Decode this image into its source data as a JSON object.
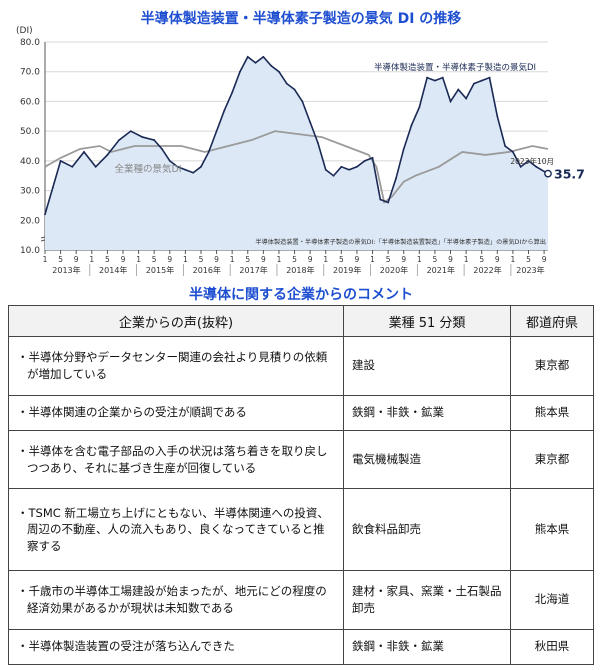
{
  "chart_data": {
    "type": "area",
    "title": "半導体製造装置・半導体素子製造の景気 DI の推移",
    "ylabel": "(DI)",
    "ylim": [
      10,
      80
    ],
    "yticks": [
      "10.0",
      "20.0",
      "30.0",
      "40.0",
      "50.0",
      "60.0",
      "70.0",
      "80.0"
    ],
    "month_ticks": [
      "1",
      "5",
      "9"
    ],
    "year_labels": [
      "2013年",
      "2014年",
      "2015年",
      "2016年",
      "2017年",
      "2018年",
      "2019年",
      "2020年",
      "2021年",
      "2022年",
      "2023年"
    ],
    "x_start": "2013-01",
    "x_end": "2023-10",
    "series": [
      {
        "name": "半導体製造装置・半導体素子製造の景気DI",
        "color": "#1a2a55",
        "fill": "#dde8f6",
        "points": [
          [
            "2013-01",
            22
          ],
          [
            "2013-03",
            31
          ],
          [
            "2013-05",
            40
          ],
          [
            "2013-08",
            38
          ],
          [
            "2013-11",
            43
          ],
          [
            "2014-02",
            38
          ],
          [
            "2014-05",
            42
          ],
          [
            "2014-08",
            47
          ],
          [
            "2014-11",
            50
          ],
          [
            "2015-02",
            48
          ],
          [
            "2015-05",
            47
          ],
          [
            "2015-07",
            44
          ],
          [
            "2015-09",
            40
          ],
          [
            "2015-11",
            38
          ],
          [
            "2016-01",
            37
          ],
          [
            "2016-03",
            36
          ],
          [
            "2016-05",
            38
          ],
          [
            "2016-07",
            43
          ],
          [
            "2016-09",
            50
          ],
          [
            "2016-11",
            57
          ],
          [
            "2017-01",
            63
          ],
          [
            "2017-03",
            70
          ],
          [
            "2017-05",
            75
          ],
          [
            "2017-07",
            73
          ],
          [
            "2017-09",
            75
          ],
          [
            "2017-11",
            72
          ],
          [
            "2018-01",
            70
          ],
          [
            "2018-03",
            66
          ],
          [
            "2018-05",
            64
          ],
          [
            "2018-07",
            60
          ],
          [
            "2018-09",
            53
          ],
          [
            "2018-11",
            46
          ],
          [
            "2019-01",
            37
          ],
          [
            "2019-03",
            35
          ],
          [
            "2019-05",
            38
          ],
          [
            "2019-07",
            37
          ],
          [
            "2019-09",
            38
          ],
          [
            "2019-11",
            40
          ],
          [
            "2020-01",
            41
          ],
          [
            "2020-03",
            27
          ],
          [
            "2020-05",
            26
          ],
          [
            "2020-07",
            34
          ],
          [
            "2020-09",
            44
          ],
          [
            "2020-11",
            52
          ],
          [
            "2021-01",
            58
          ],
          [
            "2021-03",
            68
          ],
          [
            "2021-05",
            67
          ],
          [
            "2021-07",
            68
          ],
          [
            "2021-09",
            60
          ],
          [
            "2021-11",
            64
          ],
          [
            "2022-01",
            61
          ],
          [
            "2022-03",
            66
          ],
          [
            "2022-05",
            67
          ],
          [
            "2022-07",
            68
          ],
          [
            "2022-09",
            55
          ],
          [
            "2022-11",
            45
          ],
          [
            "2023-01",
            43
          ],
          [
            "2023-03",
            38
          ],
          [
            "2023-05",
            40
          ],
          [
            "2023-07",
            38
          ],
          [
            "2023-10",
            35.7
          ]
        ]
      },
      {
        "name": "全業種の景気DI",
        "color": "#9a9a9a",
        "points": [
          [
            "2013-01",
            38
          ],
          [
            "2013-05",
            41
          ],
          [
            "2013-10",
            44
          ],
          [
            "2014-03",
            45
          ],
          [
            "2014-06",
            43
          ],
          [
            "2014-12",
            45
          ],
          [
            "2015-06",
            45
          ],
          [
            "2015-12",
            45
          ],
          [
            "2016-06",
            43
          ],
          [
            "2016-12",
            45
          ],
          [
            "2017-06",
            47
          ],
          [
            "2017-12",
            50
          ],
          [
            "2018-06",
            49
          ],
          [
            "2018-12",
            48
          ],
          [
            "2019-06",
            45
          ],
          [
            "2019-12",
            42
          ],
          [
            "2020-02",
            38
          ],
          [
            "2020-04",
            26
          ],
          [
            "2020-06",
            28
          ],
          [
            "2020-09",
            33
          ],
          [
            "2020-12",
            35
          ],
          [
            "2021-06",
            38
          ],
          [
            "2021-12",
            43
          ],
          [
            "2022-06",
            42
          ],
          [
            "2022-12",
            43
          ],
          [
            "2023-06",
            45
          ],
          [
            "2023-10",
            44
          ]
        ]
      }
    ],
    "annotations": {
      "series1_label": "半導体製造装置・半導体素子製造の景気DI",
      "series2_label": "全業種の景気DI",
      "last_month": "2023年10月",
      "last_value": "35.7",
      "note": "半導体製造装置・半導体素子製造の景気DI:「半導体製造装置製造」「半導体素子製造」の景気DIから算出"
    },
    "grid": true,
    "legend": "inline labels"
  },
  "comments": {
    "title": "半導体に関する企業からのコメント",
    "headers": [
      "企業からの声(抜粋)",
      "業種 51 分類",
      "都道府県"
    ],
    "rows": [
      {
        "voice": "・半導体分野やデータセンター関連の会社より見積りの依頼が増加している",
        "industry": "建設",
        "pref": "東京都"
      },
      {
        "voice": "・半導体関連の企業からの受注が順調である",
        "industry": "鉄鋼・非鉄・鉱業",
        "pref": "熊本県"
      },
      {
        "voice": "・半導体を含む電子部品の入手の状況は落ち着きを取り戻しつつあり、それに基づき生産が回復している",
        "industry": "電気機械製造",
        "pref": "東京都"
      },
      {
        "voice": "・TSMC 新工場立ち上げにともない、半導体関連への投資、周辺の不動産、人の流入もあり、良くなってきていると推察する",
        "industry": "飲食料品卸売",
        "pref": "熊本県"
      },
      {
        "voice": "・千歳市の半導体工場建設が始まったが、地元にどの程度の経済効果があるかが現状は未知数である",
        "industry": "建材・家具、窯業・土石製品卸売",
        "pref": "北海道"
      },
      {
        "voice": "・半導体製造装置の受注が落ち込んできた",
        "industry": "鉄鋼・非鉄・鉱業",
        "pref": "秋田県"
      }
    ]
  }
}
